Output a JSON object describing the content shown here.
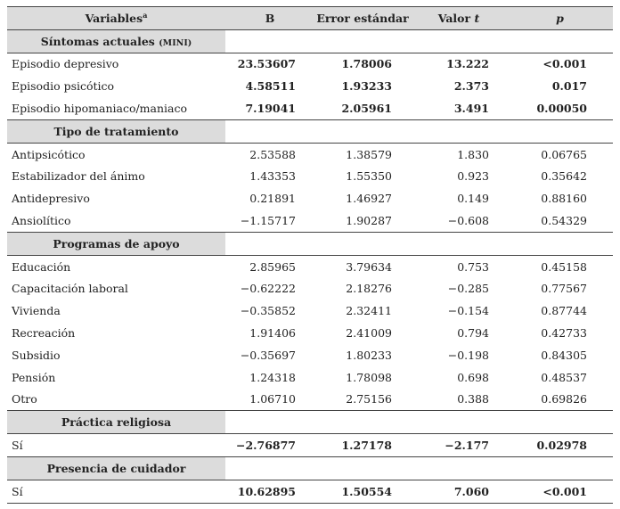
{
  "header": {
    "variables": "Variables",
    "variables_note": "a",
    "b": "B",
    "se": "Error estándar",
    "t_label": "Valor",
    "t_symbol": "t",
    "p": "p"
  },
  "sections": [
    {
      "title": "Síntomas actuales",
      "title_note": "(MINI)",
      "rows": [
        {
          "label": "Episodio depresivo",
          "values": [
            "23.53607",
            "1.78006",
            "13.222",
            "<0.001"
          ],
          "bold": true
        },
        {
          "label": "Episodio psicótico",
          "values": [
            "4.58511",
            "1.93233",
            "2.373",
            "0.017"
          ],
          "bold": true
        },
        {
          "label": "Episodio hipomaniaco/maniaco",
          "values": [
            "7.19041",
            "2.05961",
            "3.491",
            "0.00050"
          ],
          "bold": true
        }
      ]
    },
    {
      "title": "Tipo de tratamiento",
      "rows": [
        {
          "label": "Antipsicótico",
          "values": [
            "2.53588",
            "1.38579",
            "1.830",
            "0.06765"
          ],
          "bold": false
        },
        {
          "label": "Estabilizador del ánimo",
          "values": [
            "1.43353",
            "1.55350",
            "0.923",
            "0.35642"
          ],
          "bold": false
        },
        {
          "label": "Antidepresivo",
          "values": [
            "0.21891",
            "1.46927",
            "0.149",
            "0.88160"
          ],
          "bold": false
        },
        {
          "label": "Ansiolítico",
          "values": [
            "−1.15717",
            "1.90287",
            "−0.608",
            "0.54329"
          ],
          "bold": false
        }
      ]
    },
    {
      "title": "Programas de apoyo",
      "rows": [
        {
          "label": "Educación",
          "values": [
            "2.85965",
            "3.79634",
            "0.753",
            "0.45158"
          ],
          "bold": false
        },
        {
          "label": "Capacitación laboral",
          "values": [
            "−0.62222",
            "2.18276",
            "−0.285",
            "0.77567"
          ],
          "bold": false
        },
        {
          "label": "Vivienda",
          "values": [
            "−0.35852",
            "2.32411",
            "−0.154",
            "0.87744"
          ],
          "bold": false
        },
        {
          "label": "Recreación",
          "values": [
            "1.91406",
            "2.41009",
            "0.794",
            "0.42733"
          ],
          "bold": false
        },
        {
          "label": "Subsidio",
          "values": [
            "−0.35697",
            "1.80233",
            "−0.198",
            "0.84305"
          ],
          "bold": false
        },
        {
          "label": "Pensión",
          "values": [
            "1.24318",
            "1.78098",
            "0.698",
            "0.48537"
          ],
          "bold": false
        },
        {
          "label": "Otro",
          "values": [
            "1.06710",
            "2.75156",
            "0.388",
            "0.69826"
          ],
          "bold": false
        }
      ]
    },
    {
      "title": "Práctica religiosa",
      "rows": [
        {
          "label": "Sí",
          "values": [
            "−2.76877",
            "1.27178",
            "−2.177",
            "0.02978"
          ],
          "bold": true
        }
      ]
    },
    {
      "title": "Presencia de cuidador",
      "rows": [
        {
          "label": "Sí",
          "values": [
            "10.62895",
            "1.50554",
            "7.060",
            "<0.001"
          ],
          "bold": true
        }
      ]
    }
  ]
}
